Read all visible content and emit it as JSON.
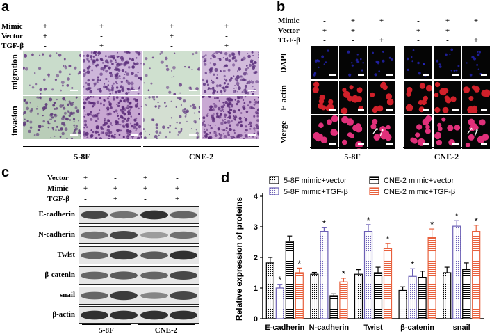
{
  "panel_a": {
    "label": "a",
    "row_labels": [
      "Mimic",
      "Vector",
      "TGF-β"
    ],
    "cols": [
      {
        "mimic": "+",
        "vector": "+",
        "tgf": "-"
      },
      {
        "mimic": "+",
        "vector": "-",
        "tgf": "+"
      },
      {
        "mimic": "+",
        "vector": "+",
        "tgf": "-"
      },
      {
        "mimic": "+",
        "vector": "-",
        "tgf": "+"
      }
    ],
    "side_labels": [
      "migration",
      "invasion"
    ],
    "groups": [
      "5-8F",
      "CNE-2"
    ]
  },
  "panel_b": {
    "label": "b",
    "row_labels": [
      "Mimic",
      "Vector",
      "TGF-β"
    ],
    "cols": [
      {
        "mimic": "-",
        "vector": "+",
        "tgf": "-"
      },
      {
        "mimic": "+",
        "vector": "+",
        "tgf": "-"
      },
      {
        "mimic": "+",
        "vector": "-",
        "tgf": "+"
      },
      {
        "mimic": "-",
        "vector": "+",
        "tgf": "-"
      },
      {
        "mimic": "+",
        "vector": "+",
        "tgf": "-"
      },
      {
        "mimic": "+",
        "vector": "-",
        "tgf": "+"
      }
    ],
    "side_labels": [
      "DAPI",
      "F-actin",
      "Merge"
    ],
    "groups": [
      "5-8F",
      "CNE-2"
    ]
  },
  "panel_c": {
    "label": "c",
    "row_labels": [
      "Vector",
      "Mimic",
      "TGF-β"
    ],
    "cols": [
      {
        "vector": "+",
        "mimic": "+",
        "tgf": "-"
      },
      {
        "vector": "-",
        "mimic": "+",
        "tgf": "+"
      },
      {
        "vector": "+",
        "mimic": "+",
        "tgf": "-"
      },
      {
        "vector": "-",
        "mimic": "+",
        "tgf": "+"
      }
    ],
    "proteins": [
      "E-cadherin",
      "N-cadherin",
      "Twist",
      "β-catenin",
      "snail",
      "β-actin"
    ],
    "groups": [
      "5-8F",
      "CNE-2"
    ]
  },
  "panel_d": {
    "label": "d",
    "significance_mark": "*"
  },
  "chart_data": {
    "type": "bar",
    "title": "",
    "xlabel": "",
    "ylabel": "Relative expression of proteins",
    "ylim": [
      0,
      4
    ],
    "yticks": [
      0,
      1,
      2,
      3,
      4
    ],
    "categories": [
      "E-cadherin",
      "N-cadherin",
      "Twist",
      "β-catenin",
      "snail"
    ],
    "legend_position": "top",
    "series": [
      {
        "name": "5-8F mimic+vector",
        "color": "#000000",
        "pattern": "dots",
        "values": [
          1.82,
          1.45,
          1.45,
          0.92,
          1.5
        ],
        "errors": [
          0.18,
          0.06,
          0.15,
          0.12,
          0.18
        ],
        "significant": [
          false,
          false,
          false,
          false,
          false
        ]
      },
      {
        "name": "5-8F mimic+TGF-β",
        "color": "#6b5fb5",
        "pattern": "dots",
        "values": [
          1.0,
          2.85,
          2.85,
          1.38,
          3.02
        ],
        "errors": [
          0.12,
          0.12,
          0.22,
          0.25,
          0.18
        ],
        "significant": [
          true,
          true,
          true,
          true,
          true
        ]
      },
      {
        "name": "CNE-2 mimic+vector",
        "color": "#000000",
        "pattern": "hlines",
        "values": [
          2.52,
          0.75,
          1.5,
          1.35,
          1.6
        ],
        "errors": [
          0.18,
          0.06,
          0.18,
          0.2,
          0.22
        ],
        "significant": [
          false,
          false,
          false,
          false,
          false
        ]
      },
      {
        "name": "CNE-2 mimic+TGF-β",
        "color": "#e8603c",
        "pattern": "hlines",
        "values": [
          1.5,
          1.2,
          2.3,
          2.65,
          2.85
        ],
        "errors": [
          0.15,
          0.12,
          0.15,
          0.28,
          0.2
        ],
        "significant": [
          true,
          true,
          true,
          true,
          true
        ]
      }
    ]
  }
}
